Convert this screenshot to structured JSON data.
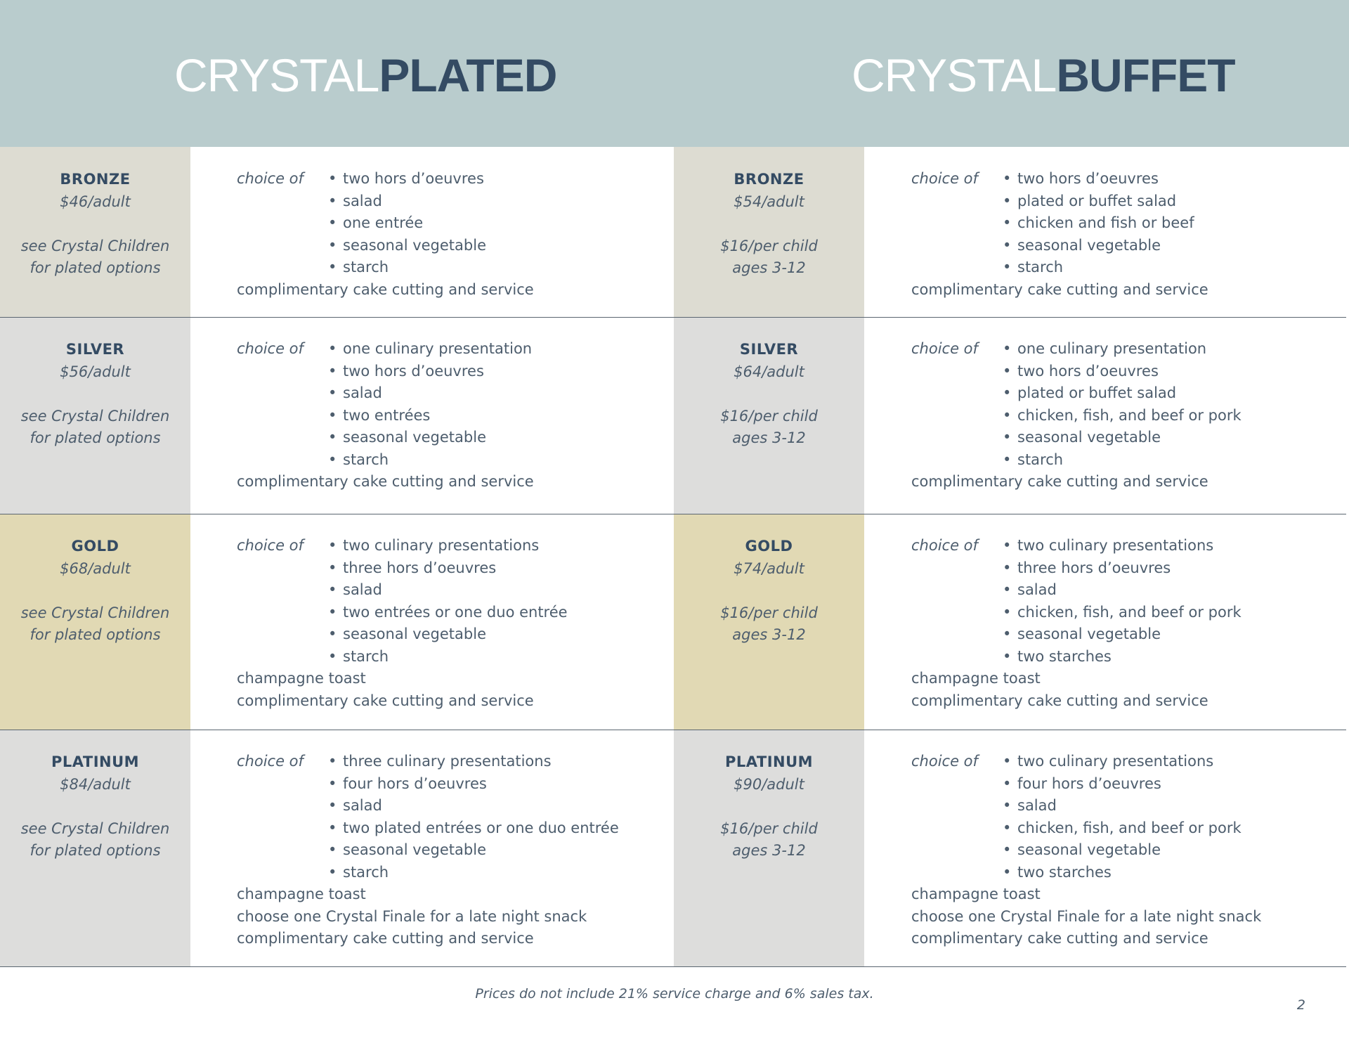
{
  "header": {
    "plated": {
      "light": "CRYSTAL",
      "bold": "PLATED"
    },
    "buffet": {
      "light": "CRYSTAL",
      "bold": "BUFFET"
    }
  },
  "colors": {
    "header_bg": "#b9cccd",
    "bronze": "#dddcd2",
    "silver": "#dddddc",
    "gold": "#e1d9b4",
    "platinum": "#dddddc",
    "title_dark": "#344b63"
  },
  "choice_label": "choice of",
  "rows": [
    {
      "plated": {
        "tier": "BRONZE",
        "price": "$46/adult",
        "note_line1": "see Crystal Children",
        "note_line2": "for plated options",
        "items": [
          "two hors d’oeuvres",
          "salad",
          "one entrée",
          "seasonal vegetable",
          "starch"
        ],
        "extras": [
          "complimentary cake cutting and service"
        ]
      },
      "buffet": {
        "tier": "BRONZE",
        "price": "$54/adult",
        "note_line1": "$16/per child",
        "note_line2": "ages 3-12",
        "items": [
          "two hors d’oeuvres",
          "plated or buffet salad",
          "chicken and fish or beef",
          "seasonal vegetable",
          "starch"
        ],
        "extras": [
          "complimentary cake cutting and service"
        ]
      }
    },
    {
      "plated": {
        "tier": "SILVER",
        "price": "$56/adult",
        "note_line1": "see Crystal Children",
        "note_line2": "for plated options",
        "items": [
          "one culinary presentation",
          "two hors d’oeuvres",
          "salad",
          "two entrées",
          "seasonal vegetable",
          "starch"
        ],
        "extras": [
          "complimentary cake cutting and service"
        ]
      },
      "buffet": {
        "tier": "SILVER",
        "price": "$64/adult",
        "note_line1": "$16/per child",
        "note_line2": "ages 3-12",
        "items": [
          "one culinary presentation",
          "two hors d’oeuvres",
          "plated or buffet salad",
          "chicken, fish, and beef or pork",
          "seasonal vegetable",
          "starch"
        ],
        "extras": [
          "complimentary cake cutting and service"
        ]
      }
    },
    {
      "plated": {
        "tier": "GOLD",
        "price": "$68/adult",
        "note_line1": "see Crystal Children",
        "note_line2": "for plated options",
        "items": [
          "two culinary presentations",
          "three hors d’oeuvres",
          "salad",
          "two entrées or one duo entrée",
          "seasonal vegetable",
          "starch"
        ],
        "extras": [
          "champagne toast",
          "complimentary cake cutting and service"
        ]
      },
      "buffet": {
        "tier": "GOLD",
        "price": "$74/adult",
        "note_line1": "$16/per child",
        "note_line2": "ages 3-12",
        "items": [
          "two culinary presentations",
          "three hors d’oeuvres",
          "salad",
          "chicken, fish, and beef or pork",
          "seasonal vegetable",
          "two starches"
        ],
        "extras": [
          "champagne toast",
          "complimentary cake cutting and service"
        ]
      }
    },
    {
      "plated": {
        "tier": "PLATINUM",
        "price": "$84/adult",
        "note_line1": "see Crystal Children",
        "note_line2": "for plated options",
        "items": [
          "three culinary presentations",
          "four hors d’oeuvres",
          "salad",
          "two plated entrées or one duo entrée",
          "seasonal vegetable",
          "starch"
        ],
        "extras": [
          "champagne toast",
          "choose one Crystal Finale for a late night snack",
          "complimentary cake cutting and service"
        ]
      },
      "buffet": {
        "tier": "PLATINUM",
        "price": "$90/adult",
        "note_line1": "$16/per child",
        "note_line2": "ages 3-12",
        "items": [
          "two culinary presentations",
          "four hors d’oeuvres",
          "salad",
          "chicken, fish, and beef or pork",
          "seasonal vegetable",
          "two starches"
        ],
        "extras": [
          "champagne toast",
          "choose one Crystal Finale for a late night snack",
          "complimentary cake cutting and service"
        ]
      }
    }
  ],
  "footnote": "Prices do not include 21% service charge and 6% sales tax.",
  "page_number": "2"
}
